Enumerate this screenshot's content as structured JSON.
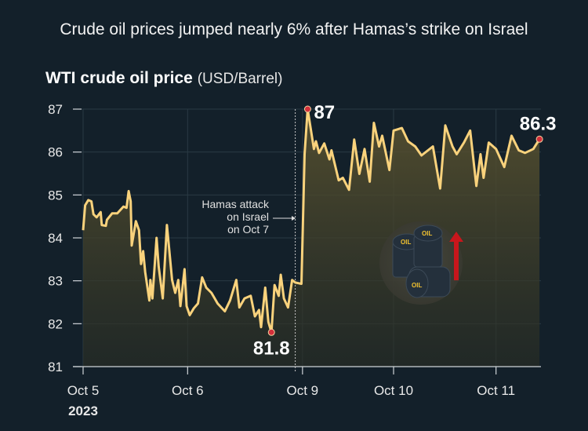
{
  "headline": "Crude oil prices jumped nearly 6% after Hamas’s strike on Israel",
  "chart_data": {
    "type": "line",
    "title": "WTI crude oil price",
    "unit": "(USD/Barrel)",
    "ylim": [
      81,
      87
    ],
    "yticks": [
      81,
      82,
      83,
      84,
      85,
      86,
      87
    ],
    "xlim": [
      0,
      4.45
    ],
    "xticks": [
      {
        "x": 0,
        "label": "Oct 5"
      },
      {
        "x": 1.01,
        "label": "Oct 6"
      },
      {
        "x": 2.12,
        "label": "Oct 9"
      },
      {
        "x": 3.0,
        "label": "Oct 10"
      },
      {
        "x": 3.99,
        "label": "Oct 11"
      }
    ],
    "year_label": "2023",
    "grid": true,
    "x": [
      0,
      0.02,
      0.05,
      0.08,
      0.1,
      0.13,
      0.17,
      0.18,
      0.22,
      0.23,
      0.28,
      0.33,
      0.39,
      0.42,
      0.44,
      0.46,
      0.47,
      0.51,
      0.54,
      0.56,
      0.58,
      0.6,
      0.64,
      0.65,
      0.67,
      0.71,
      0.73,
      0.77,
      0.81,
      0.86,
      0.89,
      0.92,
      0.94,
      0.98,
      1.0,
      1.03,
      1.07,
      1.11,
      1.15,
      1.19,
      1.24,
      1.3,
      1.37,
      1.42,
      1.48,
      1.51,
      1.56,
      1.62,
      1.66,
      1.7,
      1.72,
      1.76,
      1.79,
      1.82,
      1.85,
      1.89,
      1.91,
      1.94,
      1.98,
      2.02,
      2.05,
      2.11,
      2.14,
      2.17,
      2.23,
      2.25,
      2.28,
      2.33,
      2.38,
      2.4,
      2.47,
      2.51,
      2.57,
      2.62,
      2.67,
      2.72,
      2.77,
      2.81,
      2.86,
      2.89,
      2.96,
      3.0,
      3.08,
      3.14,
      3.21,
      3.27,
      3.38,
      3.45,
      3.5,
      3.57,
      3.61,
      3.68,
      3.74,
      3.8,
      3.84,
      3.87,
      3.92,
      3.99,
      4.07,
      4.14,
      4.21,
      4.27,
      4.35,
      4.41
    ],
    "values": [
      84.18,
      84.76,
      84.88,
      84.85,
      84.55,
      84.48,
      84.6,
      84.3,
      84.28,
      84.42,
      84.57,
      84.57,
      84.73,
      84.7,
      85.09,
      84.85,
      83.82,
      84.39,
      84.18,
      83.39,
      83.69,
      83.2,
      82.54,
      83.02,
      82.59,
      84.0,
      83.33,
      82.59,
      84.3,
      83.02,
      82.72,
      83.02,
      82.41,
      83.27,
      82.41,
      82.2,
      82.36,
      82.47,
      83.08,
      82.84,
      82.72,
      82.47,
      82.29,
      82.54,
      83.02,
      82.38,
      82.59,
      82.65,
      82.17,
      82.32,
      81.92,
      82.84,
      82.04,
      81.8,
      82.9,
      82.65,
      83.14,
      82.59,
      82.38,
      83.02,
      82.96,
      82.93,
      85.95,
      87.0,
      86.07,
      86.25,
      85.98,
      86.2,
      85.83,
      86.04,
      85.34,
      85.4,
      85.12,
      86.29,
      85.49,
      86.07,
      85.31,
      86.68,
      86.13,
      86.38,
      85.58,
      86.5,
      86.56,
      86.25,
      86.13,
      85.92,
      86.13,
      85.15,
      86.62,
      86.13,
      85.95,
      86.22,
      86.5,
      85.21,
      85.95,
      85.4,
      86.22,
      86.07,
      85.65,
      86.38,
      86.04,
      85.98,
      86.07,
      86.3
    ],
    "annotations": [
      {
        "x": 2.17,
        "y": 87,
        "label": "87"
      },
      {
        "x": 1.82,
        "y": 81.8,
        "label": "81.8"
      },
      {
        "x": 4.41,
        "y": 86.3,
        "label": "86.3"
      }
    ],
    "event": {
      "x": 2.05,
      "lines": [
        "Hamas attack",
        "on Israel",
        "on Oct 7"
      ]
    },
    "colors": {
      "line": "#f9d27c",
      "marker": "#d32f3a",
      "grid": "#2a3a44",
      "fill": "#4a4528"
    }
  }
}
